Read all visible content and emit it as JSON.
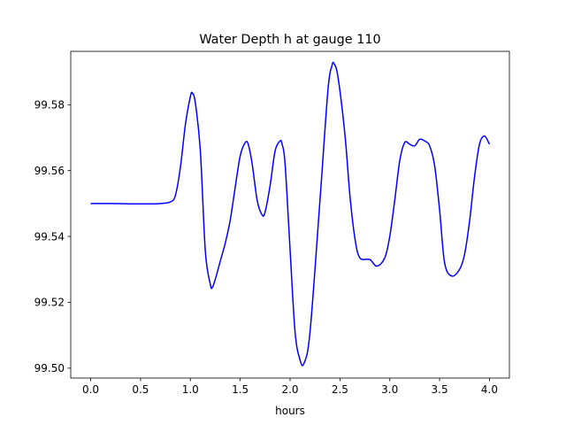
{
  "chart_data": {
    "type": "line",
    "title": "Water Depth h at gauge 110",
    "xlabel": "hours",
    "ylabel": "",
    "xlim": [
      -0.2,
      4.2
    ],
    "ylim": [
      99.497,
      99.5962
    ],
    "xticks": [
      0.0,
      0.5,
      1.0,
      1.5,
      2.0,
      2.5,
      3.0,
      3.5,
      4.0
    ],
    "xtick_labels": [
      "0.0",
      "0.5",
      "1.0",
      "1.5",
      "2.0",
      "2.5",
      "3.0",
      "3.5",
      "4.0"
    ],
    "yticks": [
      99.5,
      99.52,
      99.54,
      99.56,
      99.58
    ],
    "ytick_labels": [
      "99.50",
      "99.52",
      "99.54",
      "99.56",
      "99.58"
    ],
    "grid": false,
    "color": "#0000ff",
    "series": [
      {
        "name": "",
        "x": [
          0.0,
          0.2,
          0.4,
          0.6,
          0.7,
          0.8,
          0.85,
          0.9,
          0.95,
          1.0,
          1.02,
          1.05,
          1.1,
          1.15,
          1.2,
          1.22,
          1.25,
          1.3,
          1.35,
          1.4,
          1.45,
          1.5,
          1.55,
          1.58,
          1.62,
          1.67,
          1.72,
          1.75,
          1.8,
          1.85,
          1.9,
          1.92,
          1.95,
          2.0,
          2.05,
          2.1,
          2.14,
          2.2,
          2.3,
          2.38,
          2.42,
          2.44,
          2.48,
          2.55,
          2.6,
          2.65,
          2.7,
          2.8,
          2.87,
          2.95,
          3.0,
          3.05,
          3.1,
          3.15,
          3.2,
          3.25,
          3.3,
          3.35,
          3.4,
          3.45,
          3.5,
          3.55,
          3.62,
          3.7,
          3.75,
          3.8,
          3.85,
          3.9,
          3.95,
          4.0
        ],
        "y": [
          99.55,
          99.55,
          99.5499,
          99.5499,
          99.55,
          99.5505,
          99.5525,
          99.561,
          99.574,
          99.5825,
          99.5835,
          99.5805,
          99.566,
          99.5355,
          99.5255,
          99.5245,
          99.527,
          99.5325,
          99.538,
          99.545,
          99.555,
          99.5645,
          99.5685,
          99.568,
          99.562,
          99.551,
          99.5465,
          99.5475,
          99.5555,
          99.566,
          99.569,
          99.568,
          99.562,
          99.536,
          99.511,
          99.5025,
          99.5015,
          99.511,
          99.551,
          99.5845,
          99.5918,
          99.5925,
          99.5885,
          99.571,
          99.5525,
          99.5395,
          99.5335,
          99.533,
          99.531,
          99.5335,
          99.54,
          99.551,
          99.563,
          99.5685,
          99.568,
          99.5675,
          99.5695,
          99.569,
          99.5675,
          99.5615,
          99.548,
          99.532,
          99.528,
          99.53,
          99.5345,
          99.5445,
          99.558,
          99.568,
          99.5705,
          99.568
        ]
      }
    ]
  }
}
